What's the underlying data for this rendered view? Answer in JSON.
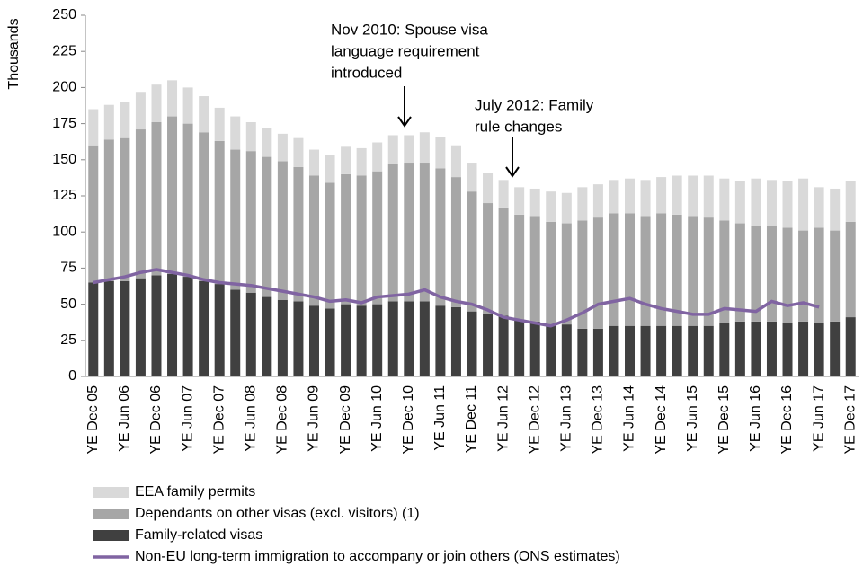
{
  "chart_data": {
    "type": "stacked_bar_line",
    "y_axis_label": "Thousands",
    "annotations": [
      {
        "lines": [
          "Nov 2010: Spouse visa",
          "language requirement",
          "introduced"
        ]
      },
      {
        "lines": [
          "July 2012: Family",
          "rule changes"
        ]
      }
    ],
    "categories": [
      "YE Dec 05",
      null,
      "YE Jun 06",
      null,
      "YE Dec 06",
      null,
      "YE Jun 07",
      null,
      "YE Dec 07",
      null,
      "YE Jun 08",
      null,
      "YE Dec 08",
      null,
      "YE Jun 09",
      null,
      "YE Dec 09",
      null,
      "YE Jun 10",
      null,
      "YE Dec 10",
      null,
      "YE Jun 11",
      null,
      "YE Dec 11",
      null,
      "YE Jun 12",
      null,
      "YE Dec 12",
      null,
      "YE Jun 13",
      null,
      "YE Dec 13",
      null,
      "YE Jun 14",
      null,
      "YE Dec 14",
      null,
      "YE Jun 15",
      null,
      "YE Dec 15",
      null,
      "YE Jun 16",
      null,
      "YE Dec 16",
      null,
      "YE Jun 17",
      null,
      "YE Dec 17"
    ],
    "series": [
      {
        "name": "Family-related visas",
        "color": "#404040",
        "values": [
          65,
          66,
          66,
          68,
          70,
          71,
          69,
          66,
          64,
          60,
          58,
          55,
          53,
          52,
          49,
          47,
          50,
          49,
          50,
          52,
          52,
          52,
          49,
          48,
          45,
          43,
          42,
          39,
          38,
          36,
          36,
          33,
          33,
          35,
          35,
          35,
          35,
          35,
          35,
          35,
          37,
          38,
          38,
          38,
          37,
          38,
          37,
          38,
          41
        ]
      },
      {
        "name": "Dependants on other visas (excl. visitors) (1)",
        "color": "#a6a6a6",
        "values": [
          95,
          98,
          99,
          103,
          106,
          109,
          106,
          103,
          99,
          97,
          98,
          97,
          96,
          93,
          90,
          87,
          90,
          90,
          92,
          95,
          96,
          96,
          95,
          90,
          83,
          77,
          75,
          73,
          73,
          71,
          70,
          75,
          77,
          78,
          78,
          76,
          78,
          77,
          76,
          75,
          71,
          68,
          66,
          66,
          66,
          63,
          66,
          63,
          66
        ]
      },
      {
        "name": "EEA family permits",
        "color": "#d9d9d9",
        "values": [
          25,
          24,
          25,
          26,
          26,
          25,
          25,
          25,
          23,
          23,
          20,
          20,
          19,
          20,
          18,
          19,
          19,
          19,
          20,
          20,
          19,
          21,
          22,
          22,
          20,
          21,
          19,
          19,
          19,
          21,
          21,
          23,
          23,
          23,
          24,
          25,
          25,
          27,
          28,
          29,
          29,
          29,
          33,
          32,
          32,
          36,
          28,
          29,
          28
        ]
      }
    ],
    "line": {
      "name": "Non-EU long-term immigration to accompany or join others (ONS estimates)",
      "color": "#8064a2",
      "values": [
        65,
        67,
        69,
        72,
        74,
        72,
        70,
        67,
        65,
        64,
        63,
        61,
        59,
        57,
        55,
        52,
        53,
        51,
        55,
        56,
        57,
        60,
        55,
        52,
        50,
        46,
        41,
        39,
        37,
        35,
        39,
        44,
        50,
        52,
        54,
        50,
        47,
        45,
        43,
        43,
        47,
        46,
        45,
        52,
        49,
        51,
        48,
        null,
        null
      ]
    },
    "ylim": [
      0,
      250
    ],
    "yticks": [
      0,
      25,
      50,
      75,
      100,
      125,
      150,
      175,
      200,
      225,
      250
    ]
  }
}
